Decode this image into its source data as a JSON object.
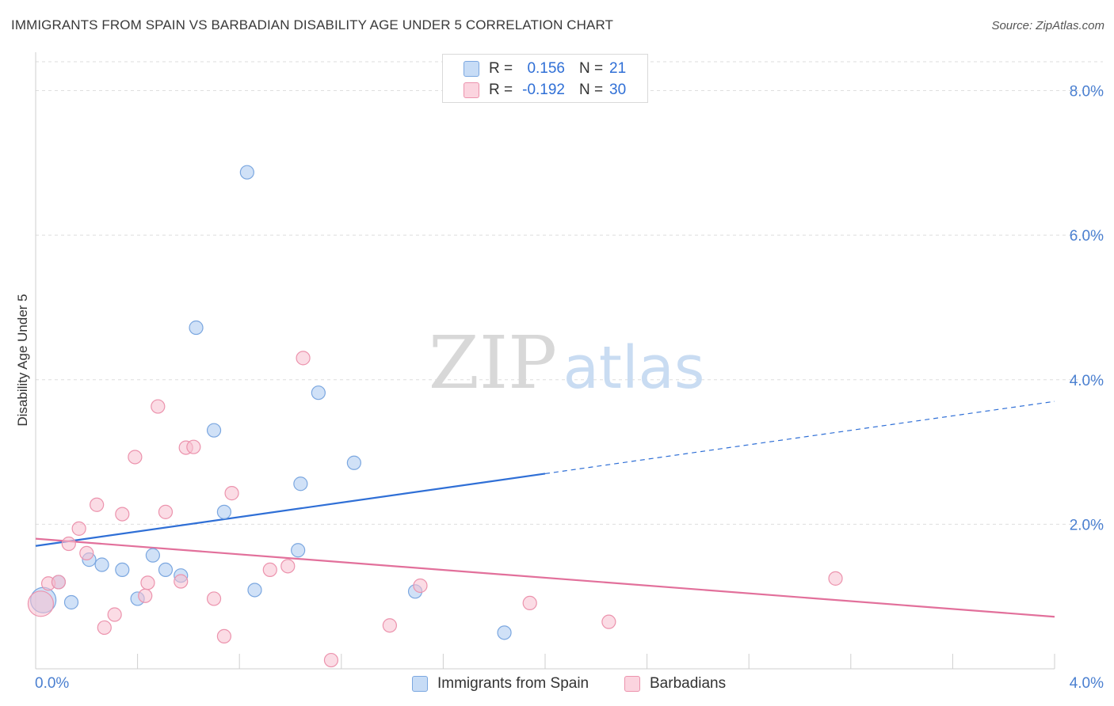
{
  "title": "IMMIGRANTS FROM SPAIN VS BARBADIAN DISABILITY AGE UNDER 5 CORRELATION CHART",
  "source": "Source: ZipAtlas.com",
  "watermark": {
    "zip": "ZIP",
    "atlas": "atlas"
  },
  "stats_legend": [
    {
      "r_label": "R =",
      "r_value": "0.156",
      "n_label": "N =",
      "n_value": "21",
      "color": "#a9c8f0",
      "border": "#7ba7e0"
    },
    {
      "r_label": "R =",
      "r_value": "-0.192",
      "n_label": "N =",
      "n_value": "30",
      "color": "#f8c0d0",
      "border": "#ec93ad"
    }
  ],
  "bottom_legend": [
    {
      "label": "Immigrants from Spain",
      "color": "#a9c8f0",
      "border": "#7ba7e0"
    },
    {
      "label": "Barbadians",
      "color": "#f8c0d0",
      "border": "#ec93ad"
    }
  ],
  "chart_data": {
    "type": "scatter",
    "title": "IMMIGRANTS FROM SPAIN VS BARBADIAN DISABILITY AGE UNDER 5 CORRELATION CHART",
    "xlabel": "",
    "ylabel": "Disability Age Under 5",
    "xlim": [
      0,
      4.0
    ],
    "ylim": [
      0,
      8.4
    ],
    "x_tick_labels": [
      "0.0%",
      "4.0%"
    ],
    "y_tick_labels": [
      "2.0%",
      "4.0%",
      "6.0%",
      "8.0%"
    ],
    "y_ticks": [
      2.0,
      4.0,
      6.0,
      8.0
    ],
    "grid": true,
    "legend": "bottom",
    "series": [
      {
        "name": "Immigrants from Spain",
        "color": "#a9c8f0",
        "stroke": "#7ba7e0",
        "line_color": "#2f6fd6",
        "trend": {
          "x0": 0.0,
          "y0": 1.7,
          "x1": 2.0,
          "y1": 2.7,
          "x_dash_end": 4.0,
          "y_dash_end": 3.7
        },
        "points": [
          {
            "x": 0.03,
            "y": 0.95,
            "size": "large"
          },
          {
            "x": 0.09,
            "y": 1.2
          },
          {
            "x": 0.14,
            "y": 0.92
          },
          {
            "x": 0.21,
            "y": 1.51
          },
          {
            "x": 0.26,
            "y": 1.44
          },
          {
            "x": 0.34,
            "y": 1.37
          },
          {
            "x": 0.4,
            "y": 0.97
          },
          {
            "x": 0.46,
            "y": 1.57
          },
          {
            "x": 0.51,
            "y": 1.37
          },
          {
            "x": 0.57,
            "y": 1.29
          },
          {
            "x": 0.63,
            "y": 4.72
          },
          {
            "x": 0.7,
            "y": 3.3
          },
          {
            "x": 0.74,
            "y": 2.17
          },
          {
            "x": 0.83,
            "y": 6.87
          },
          {
            "x": 0.86,
            "y": 1.09
          },
          {
            "x": 1.03,
            "y": 1.64
          },
          {
            "x": 1.04,
            "y": 2.56
          },
          {
            "x": 1.11,
            "y": 3.82
          },
          {
            "x": 1.25,
            "y": 2.85
          },
          {
            "x": 1.49,
            "y": 1.07
          },
          {
            "x": 1.84,
            "y": 0.5
          }
        ]
      },
      {
        "name": "Barbadians",
        "color": "#f8c0d0",
        "stroke": "#ec93ad",
        "line_color": "#e2709b",
        "trend": {
          "x0": 0.0,
          "y0": 1.8,
          "x1": 4.0,
          "y1": 0.72
        },
        "points": [
          {
            "x": 0.02,
            "y": 0.9,
            "size": "large"
          },
          {
            "x": 0.05,
            "y": 1.18
          },
          {
            "x": 0.09,
            "y": 1.2
          },
          {
            "x": 0.13,
            "y": 1.73
          },
          {
            "x": 0.17,
            "y": 1.94
          },
          {
            "x": 0.2,
            "y": 1.6
          },
          {
            "x": 0.24,
            "y": 2.27
          },
          {
            "x": 0.27,
            "y": 0.57
          },
          {
            "x": 0.31,
            "y": 0.75
          },
          {
            "x": 0.34,
            "y": 2.14
          },
          {
            "x": 0.39,
            "y": 2.93
          },
          {
            "x": 0.43,
            "y": 1.01
          },
          {
            "x": 0.44,
            "y": 1.19
          },
          {
            "x": 0.48,
            "y": 3.63
          },
          {
            "x": 0.51,
            "y": 2.17
          },
          {
            "x": 0.57,
            "y": 1.21
          },
          {
            "x": 0.59,
            "y": 3.06
          },
          {
            "x": 0.62,
            "y": 3.07
          },
          {
            "x": 0.7,
            "y": 0.97
          },
          {
            "x": 0.74,
            "y": 0.45
          },
          {
            "x": 0.77,
            "y": 2.43
          },
          {
            "x": 0.92,
            "y": 1.37
          },
          {
            "x": 0.99,
            "y": 1.42
          },
          {
            "x": 1.05,
            "y": 4.3
          },
          {
            "x": 1.16,
            "y": 0.12
          },
          {
            "x": 1.39,
            "y": 0.6
          },
          {
            "x": 1.51,
            "y": 1.15
          },
          {
            "x": 1.94,
            "y": 0.91
          },
          {
            "x": 2.25,
            "y": 0.65
          },
          {
            "x": 3.14,
            "y": 1.25
          }
        ]
      }
    ]
  }
}
